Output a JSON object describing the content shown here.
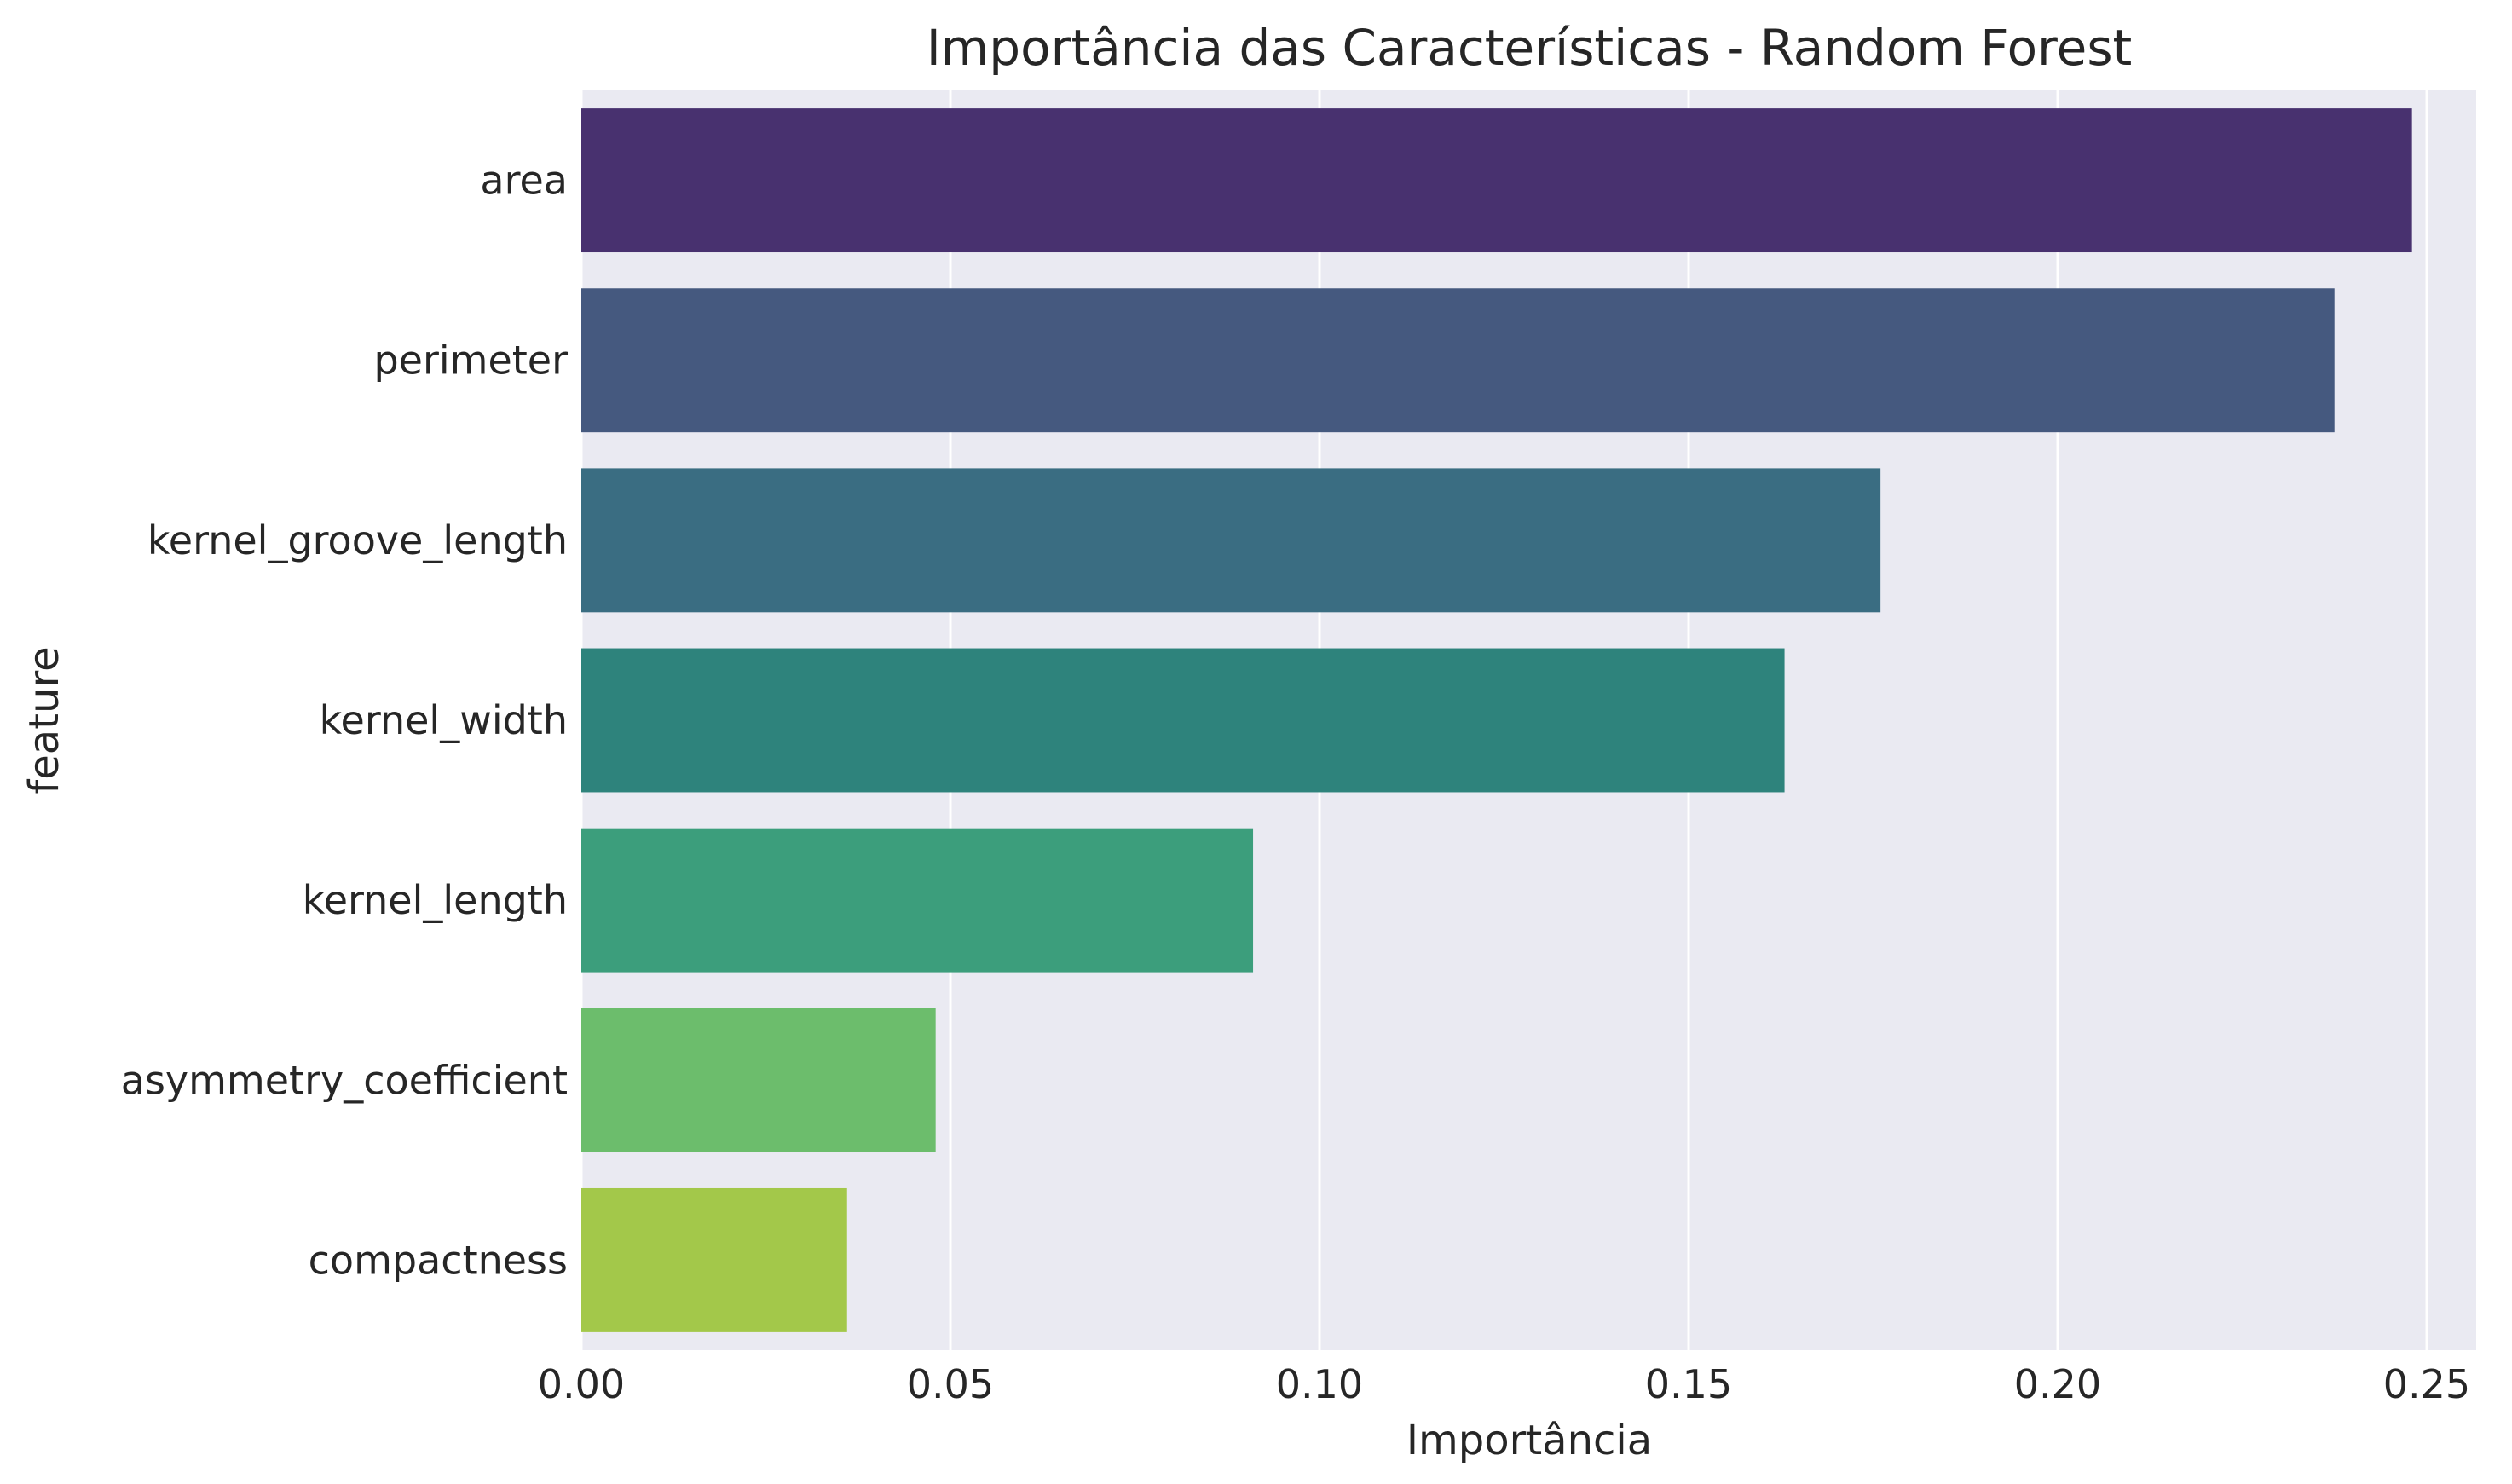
{
  "chart_data": {
    "type": "bar",
    "orientation": "horizontal",
    "title": "Importância das Características - Random Forest",
    "xlabel": "Importância",
    "ylabel": "feature",
    "categories": [
      "area",
      "perimeter",
      "kernel_groove_length",
      "kernel_width",
      "kernel_length",
      "asymmetry_coefficient",
      "compactness"
    ],
    "values": [
      0.248,
      0.2375,
      0.176,
      0.163,
      0.091,
      0.048,
      0.036
    ],
    "colors": [
      "#48316f",
      "#45597f",
      "#3a6d82",
      "#2e837c",
      "#3c9e7c",
      "#6cbd6c",
      "#a3c84a"
    ],
    "xlim": [
      0.0,
      0.2567
    ],
    "xticks": [
      0.0,
      0.05,
      0.1,
      0.15,
      0.2,
      0.25
    ],
    "xtick_labels": [
      "0.00",
      "0.05",
      "0.10",
      "0.15",
      "0.20",
      "0.25"
    ],
    "grid": "vertical",
    "plot_background": "#eaeaf2",
    "legend": "none"
  }
}
